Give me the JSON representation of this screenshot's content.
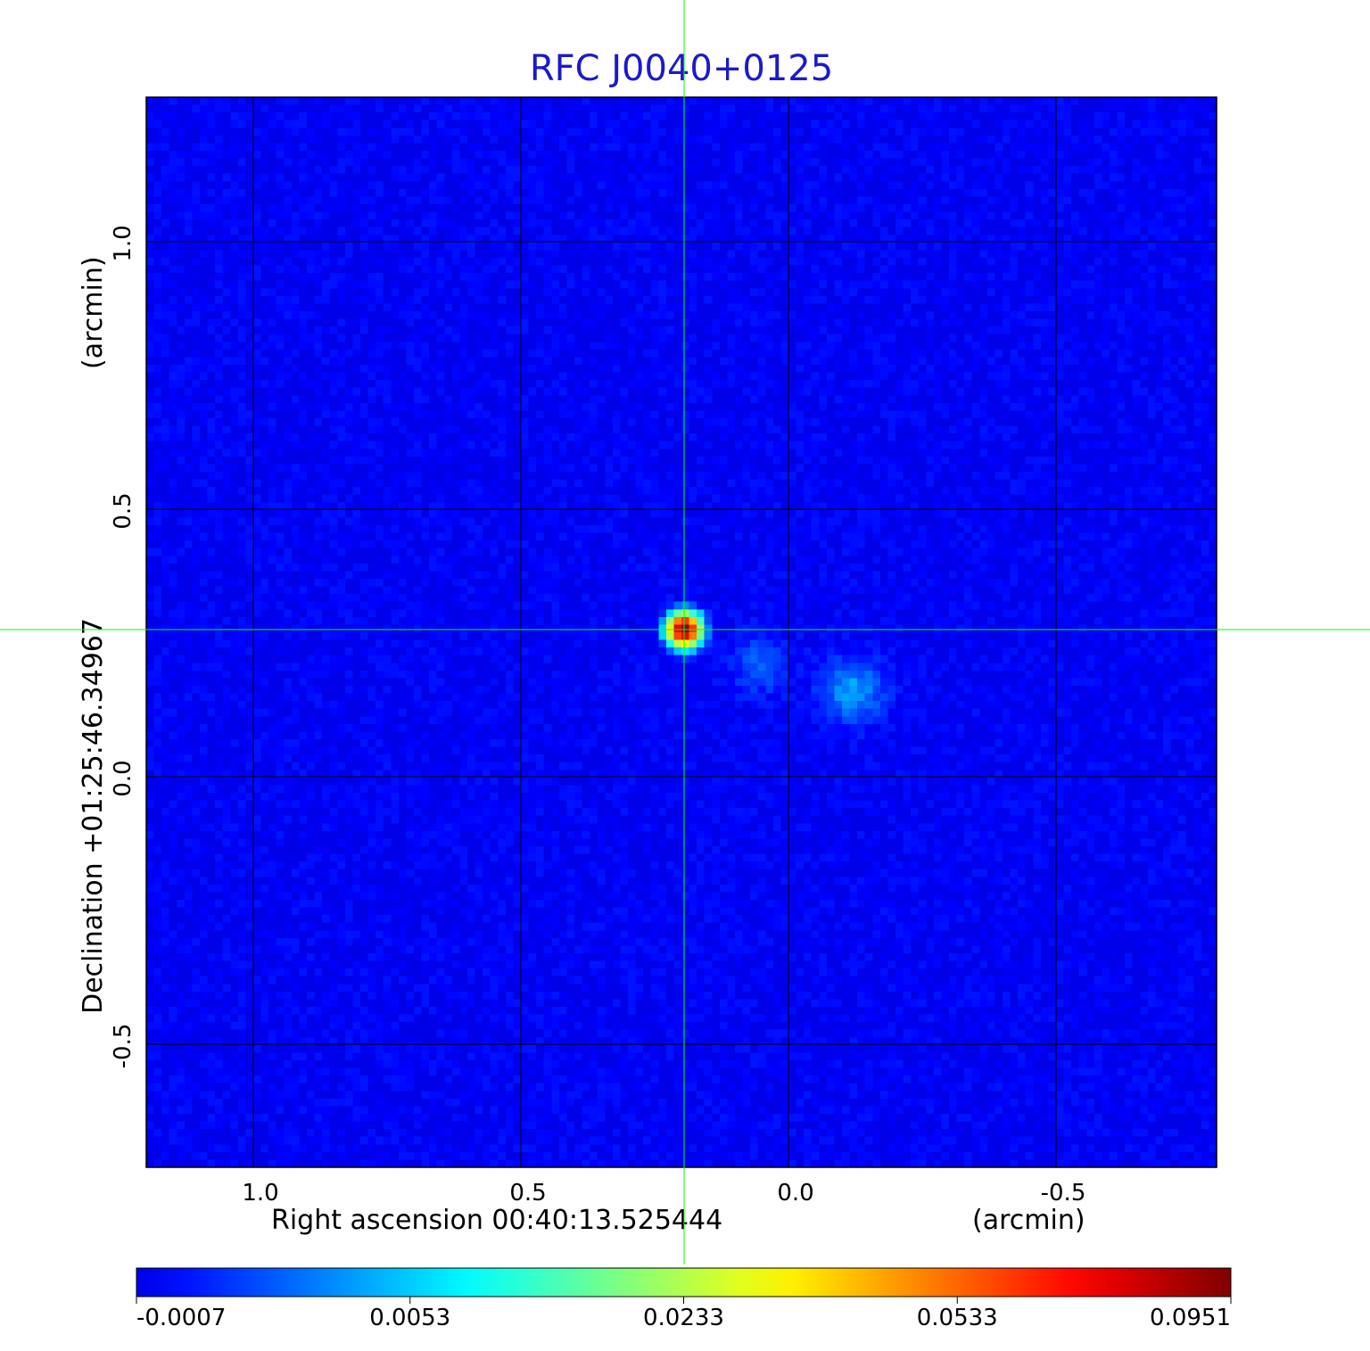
{
  "chart_data": {
    "type": "heatmap",
    "title": "RFC J0040+0125",
    "xlabel": "Right ascension  00:40:13.525444",
    "xunit": "(arcmin)",
    "ylabel": "Declination  +01:25:46.34967",
    "yunit": "(arcmin)",
    "xlim": [
      1.2,
      -0.8
    ],
    "ylim": [
      -0.73,
      1.27
    ],
    "x_ticks": [
      {
        "value": 1.0,
        "label": "1.0"
      },
      {
        "value": 0.5,
        "label": "0.5"
      },
      {
        "value": 0.0,
        "label": "0.0"
      },
      {
        "value": -0.5,
        "label": "-0.5"
      }
    ],
    "y_ticks": [
      {
        "value": 1.0,
        "label": "1.0"
      },
      {
        "value": 0.5,
        "label": "0.5"
      },
      {
        "value": 0.0,
        "label": "0.0"
      },
      {
        "value": -0.5,
        "label": "-0.5"
      }
    ],
    "grid": true,
    "crosshair": {
      "x": 0.195,
      "y": 0.275
    },
    "sources": [
      {
        "x": 0.195,
        "y": 0.275,
        "peak": 0.0951,
        "sigma": 0.018
      },
      {
        "x": -0.12,
        "y": 0.16,
        "peak": 0.0045,
        "sigma": 0.04
      },
      {
        "x": 0.05,
        "y": 0.21,
        "peak": 0.0025,
        "sigma": 0.04
      }
    ],
    "background": -0.0003,
    "noise": 0.0008,
    "colorbar": {
      "ticks": [
        {
          "value": -0.0007,
          "label": "-0.0007"
        },
        {
          "value": 0.0053,
          "label": "0.0053"
        },
        {
          "value": 0.0233,
          "label": "0.0233"
        },
        {
          "value": 0.0533,
          "label": "0.0533"
        },
        {
          "value": 0.0951,
          "label": "0.0951"
        }
      ],
      "colormap": "jet",
      "colors": {
        "title": "#1a1acc",
        "crosshair": "#00ff00",
        "grid": "#000000"
      }
    }
  }
}
